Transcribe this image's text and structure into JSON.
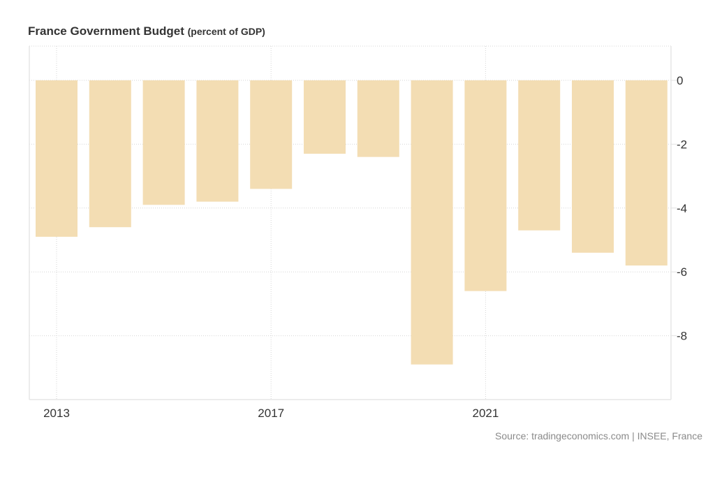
{
  "chart_data": {
    "type": "bar",
    "title": "France Government Budget",
    "subtitle": "(percent of GDP)",
    "xlabel": "",
    "ylabel": "",
    "categories": [
      "2013",
      "2014",
      "2015",
      "2016",
      "2017",
      "2018",
      "2019",
      "2020",
      "2021",
      "2022",
      "2023",
      "2024"
    ],
    "values": [
      -4.9,
      -4.6,
      -3.9,
      -3.8,
      -3.4,
      -2.3,
      -2.4,
      -8.9,
      -6.6,
      -4.7,
      -5.4,
      -5.8
    ],
    "x_tick_labels": [
      "2013",
      "2017",
      "2021"
    ],
    "y_ticks": [
      0,
      -2,
      -4,
      -6,
      -8
    ],
    "ylim": [
      -10,
      1.05
    ],
    "y_axis_side": "right",
    "grid": true,
    "bar_color": "#F3DDB3",
    "legend": "none",
    "source": "Source: tradingeconomics.com | INSEE, France"
  }
}
